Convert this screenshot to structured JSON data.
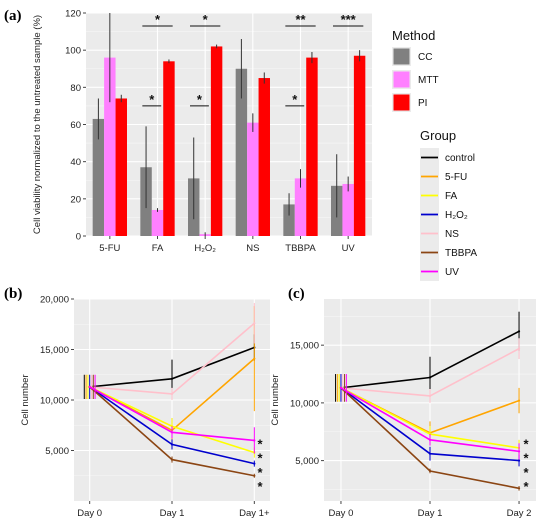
{
  "panels": {
    "a": "(a)",
    "b": "(b)",
    "c": "(c)"
  },
  "chart_data": [
    {
      "id": "a",
      "type": "bar",
      "ylabel": "Cell viability normalized to the untreated sample (%)",
      "ylim": [
        0,
        120
      ],
      "yticks": [
        0,
        20,
        40,
        60,
        80,
        100,
        120
      ],
      "categories": [
        "5-FU",
        "FA",
        "H2O2",
        "NS",
        "TBBPA",
        "UV"
      ],
      "category_display": [
        "5-FU",
        "FA",
        "H₂O₂",
        "NS",
        "TBBPA",
        "UV"
      ],
      "grid": true,
      "legend": {
        "title": "Method",
        "placement": "right"
      },
      "series": [
        {
          "name": "CC",
          "color": "#808080",
          "values": [
            63,
            37,
            31,
            90,
            17,
            27
          ],
          "err": [
            11,
            22,
            22,
            16,
            6,
            17
          ]
        },
        {
          "name": "MTT",
          "color": "#ff80ff",
          "values": [
            96,
            14,
            1,
            61,
            31,
            28
          ],
          "err": [
            24,
            1,
            1,
            5,
            5,
            4
          ]
        },
        {
          "name": "PI",
          "color": "#ff0000",
          "values": [
            74,
            94,
            102,
            85,
            96,
            97
          ],
          "err": [
            2,
            1,
            1,
            3,
            3,
            3
          ]
        }
      ],
      "significance": [
        {
          "category": "FA",
          "from": "CC",
          "to": "PI",
          "y": 113,
          "label": "*"
        },
        {
          "category": "FA",
          "from": "CC",
          "to": "MTT",
          "y": 70,
          "label": "*"
        },
        {
          "category": "H2O2",
          "from": "CC",
          "to": "PI",
          "y": 113,
          "label": "*"
        },
        {
          "category": "H2O2",
          "from": "CC",
          "to": "MTT",
          "y": 70,
          "label": "*"
        },
        {
          "category": "TBBPA",
          "from": "CC",
          "to": "PI",
          "y": 113,
          "label": "**"
        },
        {
          "category": "TBBPA",
          "from": "CC",
          "to": "MTT",
          "y": 70,
          "label": "*"
        },
        {
          "category": "UV",
          "from": "CC",
          "to": "PI",
          "y": 113,
          "label": "***"
        }
      ]
    },
    {
      "id": "b",
      "type": "line",
      "ylabel": "Cell number",
      "ylim": [
        0,
        20000
      ],
      "yticks": [
        5000,
        10000,
        15000,
        20000
      ],
      "ytick_labels": [
        "5,000",
        "10,000",
        "15,000",
        "20,000"
      ],
      "x": [
        "Day 0",
        "Day 1",
        "Day 1+"
      ],
      "grid": true,
      "series": [
        {
          "name": "control",
          "values": [
            11300,
            12100,
            15200
          ],
          "err": [
            1200,
            1900,
            1300
          ]
        },
        {
          "name": "5-FU",
          "values": [
            11300,
            7000,
            14100
          ],
          "err": [
            1200,
            1200,
            5200
          ]
        },
        {
          "name": "FA",
          "values": [
            11300,
            7400,
            4800
          ],
          "err": [
            1200,
            800,
            500
          ]
        },
        {
          "name": "H2O2",
          "values": [
            11300,
            5600,
            3700
          ],
          "err": [
            1200,
            500,
            300
          ]
        },
        {
          "name": "NS",
          "values": [
            11300,
            10600,
            17600
          ],
          "err": [
            1200,
            600,
            2000
          ]
        },
        {
          "name": "TBBPA",
          "values": [
            11300,
            4100,
            2500
          ],
          "err": [
            1200,
            300,
            200
          ]
        },
        {
          "name": "UV",
          "values": [
            11300,
            6800,
            6000
          ],
          "err": [
            1200,
            600,
            1300
          ]
        }
      ],
      "stars": [
        "*",
        "*",
        "*",
        "*"
      ]
    },
    {
      "id": "c",
      "type": "line",
      "ylabel": "Cell number",
      "ylim": [
        1500,
        19000
      ],
      "yticks": [
        5000,
        10000,
        15000
      ],
      "ytick_labels": [
        "5,000",
        "10,000",
        "15,000"
      ],
      "x": [
        "Day 0",
        "Day 1",
        "Day 2"
      ],
      "grid": true,
      "series": [
        {
          "name": "control",
          "values": [
            11300,
            12200,
            16200
          ],
          "err": [
            1200,
            1800,
            1700
          ]
        },
        {
          "name": "5-FU",
          "values": [
            11300,
            7400,
            10200
          ],
          "err": [
            1200,
            1000,
            1100
          ]
        },
        {
          "name": "FA",
          "values": [
            11300,
            7300,
            6100
          ],
          "err": [
            1200,
            700,
            700
          ]
        },
        {
          "name": "H2O2",
          "values": [
            11300,
            5600,
            5000
          ],
          "err": [
            1200,
            600,
            500
          ]
        },
        {
          "name": "NS",
          "values": [
            11300,
            10600,
            14700
          ],
          "err": [
            1200,
            600,
            900
          ]
        },
        {
          "name": "TBBPA",
          "values": [
            11300,
            4100,
            2600
          ],
          "err": [
            1200,
            200,
            200
          ]
        },
        {
          "name": "UV",
          "values": [
            11300,
            6800,
            5800
          ],
          "err": [
            1200,
            500,
            700
          ]
        }
      ],
      "stars": [
        "*",
        "*",
        "*",
        "*"
      ]
    }
  ],
  "group_legend": {
    "title": "Group",
    "items": [
      {
        "name": "control",
        "display": "control",
        "color": "#000000"
      },
      {
        "name": "5-FU",
        "display": "5-FU",
        "color": "#ffa500"
      },
      {
        "name": "FA",
        "display": "FA",
        "color": "#ffff00"
      },
      {
        "name": "H2O2",
        "display": "H₂O₂",
        "color": "#0000cd"
      },
      {
        "name": "NS",
        "display": "NS",
        "color": "#ffc0cb"
      },
      {
        "name": "TBBPA",
        "display": "TBBPA",
        "color": "#8b4513"
      },
      {
        "name": "UV",
        "display": "UV",
        "color": "#ff00ff"
      }
    ]
  }
}
